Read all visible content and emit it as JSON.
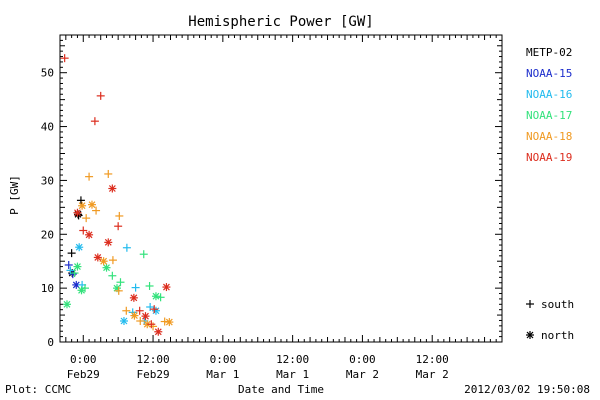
{
  "chart_data": {
    "type": "scatter",
    "title": "Hemispheric Power [GW]",
    "ylabel": "P [GW]",
    "xlabel": "Date and Time",
    "x_unit": "hours",
    "xlim": [
      -4,
      72
    ],
    "ylim": [
      0,
      57
    ],
    "y_ticks": [
      0,
      10,
      20,
      30,
      40,
      50
    ],
    "x_ticks": [
      {
        "x": 0,
        "time": "0:00",
        "date": "Feb29"
      },
      {
        "x": 12,
        "time": "12:00",
        "date": "Feb29"
      },
      {
        "x": 24,
        "time": "0:00",
        "date": "Mar 1"
      },
      {
        "x": 36,
        "time": "12:00",
        "date": "Mar 1"
      },
      {
        "x": 48,
        "time": "0:00",
        "date": "Mar 2"
      },
      {
        "x": 60,
        "time": "12:00",
        "date": "Mar 2"
      }
    ],
    "markers_legend": [
      {
        "symbol": "+",
        "label": "south"
      },
      {
        "symbol": "*",
        "label": "north"
      }
    ],
    "series": [
      {
        "name": "METP-02",
        "color": "#000000",
        "points": [
          {
            "x": -2.0,
            "y": 16.5,
            "m": "+"
          },
          {
            "x": -0.8,
            "y": 23.5,
            "m": "+"
          },
          {
            "x": -0.4,
            "y": 26.3,
            "m": "+"
          },
          {
            "x": -0.9,
            "y": 23.7,
            "m": "*"
          },
          {
            "x": -1.9,
            "y": 12.8,
            "m": "*"
          }
        ]
      },
      {
        "name": "NOAA-15",
        "color": "#1c2dcc",
        "points": [
          {
            "x": -2.5,
            "y": 14.3,
            "m": "+"
          },
          {
            "x": -1.2,
            "y": 10.6,
            "m": "*"
          },
          {
            "x": -1.8,
            "y": 12.6,
            "m": "+"
          }
        ]
      },
      {
        "name": "NOAA-16",
        "color": "#22bbee",
        "points": [
          {
            "x": -2.2,
            "y": 13.3,
            "m": "+"
          },
          {
            "x": -0.7,
            "y": 17.6,
            "m": "*"
          },
          {
            "x": -0.2,
            "y": 10.6,
            "m": "+"
          },
          {
            "x": 7.5,
            "y": 17.5,
            "m": "+"
          },
          {
            "x": 9.0,
            "y": 10.1,
            "m": "+"
          },
          {
            "x": 7.0,
            "y": 3.9,
            "m": "*"
          },
          {
            "x": 10.5,
            "y": 3.9,
            "m": "+"
          },
          {
            "x": 11.5,
            "y": 6.5,
            "m": "+"
          },
          {
            "x": 12.5,
            "y": 5.8,
            "m": "*"
          },
          {
            "x": 8.5,
            "y": 5.5,
            "m": "+"
          }
        ]
      },
      {
        "name": "NOAA-17",
        "color": "#33e27c",
        "points": [
          {
            "x": -2.8,
            "y": 7.0,
            "m": "*"
          },
          {
            "x": -1.5,
            "y": 12.8,
            "m": "+"
          },
          {
            "x": -1.0,
            "y": 14.0,
            "m": "*"
          },
          {
            "x": -0.3,
            "y": 9.6,
            "m": "*"
          },
          {
            "x": 0.3,
            "y": 10.0,
            "m": "+"
          },
          {
            "x": 4.0,
            "y": 13.8,
            "m": "*"
          },
          {
            "x": 5.0,
            "y": 12.3,
            "m": "+"
          },
          {
            "x": 5.8,
            "y": 10.0,
            "m": "*"
          },
          {
            "x": 6.4,
            "y": 11.1,
            "m": "+"
          },
          {
            "x": 10.4,
            "y": 16.3,
            "m": "+"
          },
          {
            "x": 11.4,
            "y": 10.4,
            "m": "+"
          },
          {
            "x": 12.5,
            "y": 8.5,
            "m": "*"
          },
          {
            "x": 13.3,
            "y": 8.3,
            "m": "+"
          }
        ]
      },
      {
        "name": "NOAA-18",
        "color": "#f09a22",
        "points": [
          {
            "x": -0.2,
            "y": 25.3,
            "m": "*"
          },
          {
            "x": 0.5,
            "y": 23.0,
            "m": "+"
          },
          {
            "x": 1.0,
            "y": 30.7,
            "m": "+"
          },
          {
            "x": 1.5,
            "y": 25.5,
            "m": "*"
          },
          {
            "x": 2.2,
            "y": 24.4,
            "m": "+"
          },
          {
            "x": 4.3,
            "y": 31.2,
            "m": "+"
          },
          {
            "x": 6.2,
            "y": 23.4,
            "m": "+"
          },
          {
            "x": 3.5,
            "y": 15.0,
            "m": "*"
          },
          {
            "x": 5.1,
            "y": 15.2,
            "m": "+"
          },
          {
            "x": 6.1,
            "y": 9.5,
            "m": "+"
          },
          {
            "x": 7.4,
            "y": 5.8,
            "m": "+"
          },
          {
            "x": 8.8,
            "y": 4.9,
            "m": "*"
          },
          {
            "x": 9.8,
            "y": 3.9,
            "m": "+"
          },
          {
            "x": 11.0,
            "y": 3.3,
            "m": "*"
          },
          {
            "x": 12.0,
            "y": 2.9,
            "m": "+"
          },
          {
            "x": 14.0,
            "y": 3.8,
            "m": "+"
          },
          {
            "x": 14.8,
            "y": 3.7,
            "m": "*"
          }
        ]
      },
      {
        "name": "NOAA-19",
        "color": "#dc2d1e",
        "points": [
          {
            "x": -3.2,
            "y": 52.7,
            "m": "+"
          },
          {
            "x": -1.0,
            "y": 24.0,
            "m": "*"
          },
          {
            "x": 0.0,
            "y": 20.7,
            "m": "+"
          },
          {
            "x": 1.0,
            "y": 19.9,
            "m": "*"
          },
          {
            "x": 2.0,
            "y": 41.0,
            "m": "+"
          },
          {
            "x": 3.0,
            "y": 45.7,
            "m": "+"
          },
          {
            "x": 2.5,
            "y": 15.7,
            "m": "*"
          },
          {
            "x": 4.3,
            "y": 18.5,
            "m": "*"
          },
          {
            "x": 5.0,
            "y": 28.5,
            "m": "*"
          },
          {
            "x": 6.0,
            "y": 21.5,
            "m": "+"
          },
          {
            "x": 8.7,
            "y": 8.2,
            "m": "*"
          },
          {
            "x": 9.7,
            "y": 5.8,
            "m": "+"
          },
          {
            "x": 10.7,
            "y": 4.8,
            "m": "*"
          },
          {
            "x": 11.7,
            "y": 3.3,
            "m": "+"
          },
          {
            "x": 12.9,
            "y": 1.9,
            "m": "*"
          },
          {
            "x": 14.3,
            "y": 10.2,
            "m": "*"
          },
          {
            "x": 12.2,
            "y": 6.1,
            "m": "+"
          }
        ]
      }
    ]
  },
  "footer": {
    "left": "Plot: CCMC",
    "right": "2012/03/02 19:50:08"
  }
}
